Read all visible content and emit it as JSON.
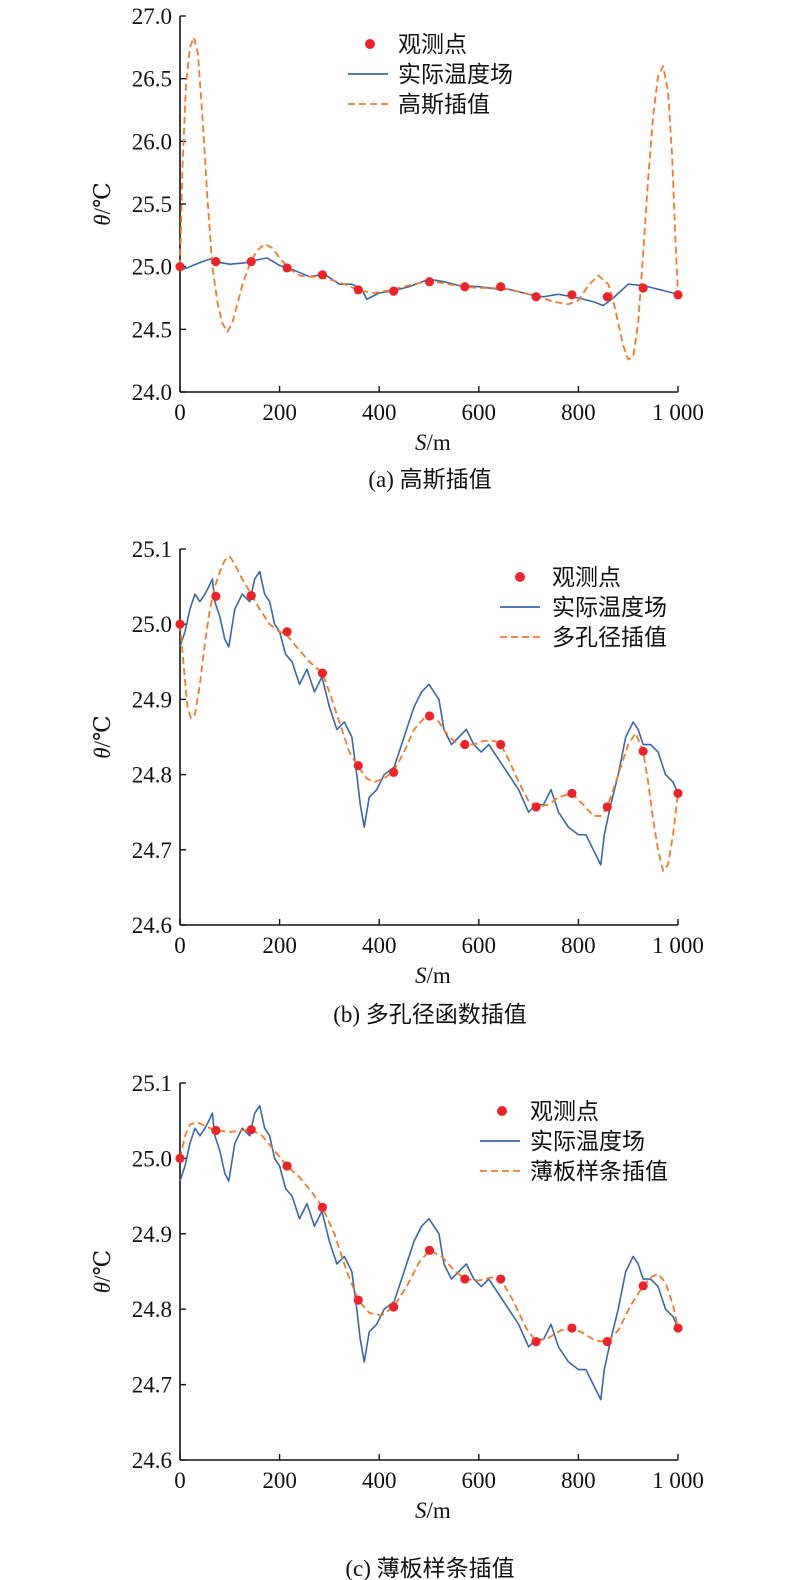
{
  "colors": {
    "observed": "#e8252a",
    "actual": "#3a66a8",
    "interp": "#ee7b2e",
    "axis": "#111111"
  },
  "chart_data": [
    {
      "id": "a",
      "type": "line",
      "caption": "(a) 高斯插值",
      "xlabel": "S/m",
      "ylabel": "θ/℃",
      "xlim": [
        0,
        1000
      ],
      "ylim": [
        24.0,
        27.0
      ],
      "xticks": [
        0,
        200,
        400,
        600,
        800,
        1000
      ],
      "xtick_labels": [
        "0",
        "200",
        "400",
        "600",
        "800",
        "1 000"
      ],
      "yticks": [
        24.0,
        24.5,
        25.0,
        25.5,
        26.0,
        26.5,
        27.0
      ],
      "ytick_labels": [
        "24.0",
        "24.5",
        "25.0",
        "25.5",
        "26.0",
        "26.5",
        "27.0"
      ],
      "legend": [
        "观测点",
        "实际温度场",
        "高斯插值"
      ],
      "legend_position": "top-center",
      "series": [
        {
          "name": "观测点",
          "kind": "points",
          "x": [
            0,
            72,
            143,
            215,
            286,
            358,
            429,
            501,
            572,
            644,
            715,
            787,
            858,
            930,
            1000
          ],
          "y": [
            25.0,
            25.04,
            25.04,
            24.99,
            24.935,
            24.815,
            24.805,
            24.88,
            24.84,
            24.84,
            24.76,
            24.775,
            24.76,
            24.83,
            24.775
          ]
        },
        {
          "name": "实际温度场",
          "kind": "line",
          "x": [
            0,
            20,
            45,
            60,
            70,
            100,
            130,
            150,
            175,
            200,
            230,
            260,
            290,
            320,
            345,
            365,
            375,
            400,
            430,
            460,
            500,
            530,
            560,
            600,
            640,
            660,
            700,
            730,
            760,
            800,
            830,
            850,
            870,
            900,
            930,
            960,
            1000
          ],
          "y": [
            24.97,
            25.0,
            25.04,
            25.06,
            25.04,
            25.02,
            25.03,
            25.05,
            25.07,
            25.01,
            24.97,
            24.92,
            24.94,
            24.86,
            24.86,
            24.82,
            24.74,
            24.79,
            24.81,
            24.84,
            24.9,
            24.88,
            24.85,
            24.84,
            24.82,
            24.82,
            24.78,
            24.76,
            24.78,
            24.75,
            24.72,
            24.69,
            24.75,
            24.86,
            24.85,
            24.82,
            24.78
          ]
        },
        {
          "name": "高斯插值",
          "kind": "dashed",
          "x": [
            0,
            5,
            12,
            20,
            28,
            36,
            45,
            55,
            65,
            75,
            85,
            95,
            105,
            115,
            125,
            140,
            155,
            170,
            185,
            200,
            220,
            240,
            260,
            280,
            300,
            330,
            360,
            390,
            420,
            450,
            480,
            510,
            540,
            570,
            600,
            630,
            660,
            690,
            720,
            750,
            780,
            800,
            820,
            840,
            860,
            870,
            880,
            890,
            900,
            910,
            920,
            930,
            940,
            950,
            960,
            970,
            980,
            988,
            995,
            1000
          ],
          "y": [
            25.0,
            25.8,
            26.45,
            26.75,
            26.83,
            26.7,
            26.2,
            25.55,
            25.0,
            24.72,
            24.55,
            24.48,
            24.55,
            24.7,
            24.85,
            25.02,
            25.13,
            25.18,
            25.15,
            25.07,
            24.98,
            24.93,
            24.92,
            24.92,
            24.9,
            24.86,
            24.81,
            24.79,
            24.81,
            24.84,
            24.87,
            24.88,
            24.86,
            24.84,
            24.83,
            24.83,
            24.82,
            24.79,
            24.76,
            24.72,
            24.7,
            24.73,
            24.85,
            24.93,
            24.86,
            24.73,
            24.55,
            24.37,
            24.26,
            24.28,
            24.55,
            25.1,
            25.7,
            26.2,
            26.52,
            26.6,
            26.4,
            25.9,
            25.2,
            24.78
          ]
        }
      ]
    },
    {
      "id": "b",
      "type": "line",
      "caption": "(b) 多孔径函数插值",
      "xlabel": "S/m",
      "ylabel": "θ/℃",
      "xlim": [
        0,
        1000
      ],
      "ylim": [
        24.6,
        25.1
      ],
      "xticks": [
        0,
        200,
        400,
        600,
        800,
        1000
      ],
      "xtick_labels": [
        "0",
        "200",
        "400",
        "600",
        "800",
        "1 000"
      ],
      "yticks": [
        24.6,
        24.7,
        24.8,
        24.9,
        25.0,
        25.1
      ],
      "ytick_labels": [
        "24.6",
        "24.7",
        "24.8",
        "24.9",
        "25.0",
        "25.1"
      ],
      "legend": [
        "观测点",
        "实际温度场",
        "多孔径插值"
      ],
      "legend_position": "top-right",
      "series": [
        {
          "name": "观测点",
          "kind": "points",
          "x": [
            0,
            72,
            143,
            215,
            286,
            358,
            429,
            501,
            572,
            644,
            715,
            787,
            858,
            930,
            1000
          ],
          "y": [
            25.0,
            25.037,
            25.038,
            24.99,
            24.935,
            24.812,
            24.803,
            24.878,
            24.84,
            24.84,
            24.757,
            24.775,
            24.757,
            24.831,
            24.775
          ]
        },
        {
          "name": "实际温度场",
          "kind": "line",
          "x": [
            0,
            10,
            20,
            30,
            40,
            50,
            58,
            65,
            70,
            80,
            90,
            98,
            110,
            125,
            140,
            150,
            160,
            170,
            180,
            190,
            200,
            212,
            225,
            240,
            255,
            270,
            285,
            300,
            315,
            330,
            345,
            355,
            362,
            370,
            380,
            395,
            410,
            430,
            450,
            470,
            485,
            500,
            510,
            520,
            530,
            545,
            560,
            575,
            590,
            605,
            620,
            640,
            660,
            680,
            700,
            715,
            730,
            745,
            760,
            780,
            800,
            815,
            830,
            845,
            852,
            865,
            880,
            895,
            910,
            920,
            930,
            945,
            960,
            975,
            990,
            1000
          ],
          "y": [
            24.97,
            24.99,
            25.02,
            25.04,
            25.03,
            25.04,
            25.05,
            25.06,
            25.03,
            25.01,
            24.98,
            24.97,
            25.02,
            25.04,
            25.03,
            25.06,
            25.07,
            25.04,
            25.03,
            25.0,
            24.99,
            24.96,
            24.95,
            24.92,
            24.94,
            24.91,
            24.93,
            24.89,
            24.86,
            24.87,
            24.85,
            24.8,
            24.76,
            24.73,
            24.77,
            24.78,
            24.8,
            24.81,
            24.85,
            24.89,
            24.91,
            24.92,
            24.91,
            24.9,
            24.86,
            24.84,
            24.85,
            24.86,
            24.84,
            24.83,
            24.84,
            24.82,
            24.8,
            24.78,
            24.75,
            24.76,
            24.76,
            24.78,
            24.75,
            24.73,
            24.72,
            24.72,
            24.7,
            24.68,
            24.72,
            24.76,
            24.8,
            24.85,
            24.87,
            24.86,
            24.84,
            24.84,
            24.83,
            24.8,
            24.79,
            24.775
          ]
        },
        {
          "name": "多孔径插值",
          "kind": "dashed",
          "x": [
            0,
            8,
            15,
            22,
            30,
            40,
            50,
            60,
            70,
            80,
            90,
            100,
            110,
            125,
            143,
            160,
            180,
            200,
            215,
            240,
            260,
            286,
            300,
            320,
            340,
            358,
            375,
            390,
            410,
            429,
            450,
            470,
            490,
            501,
            520,
            540,
            560,
            572,
            590,
            610,
            630,
            644,
            660,
            680,
            700,
            715,
            740,
            760,
            787,
            810,
            830,
            845,
            858,
            870,
            885,
            900,
            915,
            930,
            940,
            950,
            960,
            970,
            980,
            990,
            1000
          ],
          "y": [
            25.0,
            24.94,
            24.89,
            24.875,
            24.88,
            24.92,
            24.975,
            25.02,
            25.05,
            25.07,
            25.085,
            25.09,
            25.08,
            25.06,
            25.04,
            25.02,
            25.0,
            24.99,
            24.985,
            24.965,
            24.95,
            24.935,
            24.91,
            24.87,
            24.83,
            24.81,
            24.795,
            24.79,
            24.795,
            24.805,
            24.83,
            24.86,
            24.875,
            24.878,
            24.87,
            24.85,
            24.84,
            24.84,
            24.84,
            24.845,
            24.845,
            24.84,
            24.82,
            24.79,
            24.765,
            24.757,
            24.76,
            24.77,
            24.775,
            24.76,
            24.745,
            24.745,
            24.757,
            24.78,
            24.81,
            24.84,
            24.855,
            24.831,
            24.79,
            24.74,
            24.7,
            24.672,
            24.68,
            24.72,
            24.775
          ]
        }
      ]
    },
    {
      "id": "c",
      "type": "line",
      "caption": "(c) 薄板样条插值",
      "xlabel": "S/m",
      "ylabel": "θ/℃",
      "xlim": [
        0,
        1000
      ],
      "ylim": [
        24.6,
        25.1
      ],
      "xticks": [
        0,
        200,
        400,
        600,
        800,
        1000
      ],
      "xtick_labels": [
        "0",
        "200",
        "400",
        "600",
        "800",
        "1 000"
      ],
      "yticks": [
        24.6,
        24.7,
        24.8,
        24.9,
        25.0,
        25.1
      ],
      "ytick_labels": [
        "24.6",
        "24.7",
        "24.8",
        "24.9",
        "25.0",
        "25.1"
      ],
      "legend": [
        "观测点",
        "实际温度场",
        "薄板样条插值"
      ],
      "legend_position": "top-right",
      "series": [
        {
          "name": "观测点",
          "kind": "points",
          "x": [
            0,
            72,
            143,
            215,
            286,
            358,
            429,
            501,
            572,
            644,
            715,
            787,
            858,
            930,
            1000
          ],
          "y": [
            25.0,
            25.037,
            25.038,
            24.99,
            24.935,
            24.812,
            24.803,
            24.878,
            24.84,
            24.84,
            24.757,
            24.775,
            24.757,
            24.831,
            24.775
          ]
        },
        {
          "name": "实际温度场",
          "kind": "line",
          "x": [
            0,
            10,
            20,
            30,
            40,
            50,
            58,
            65,
            70,
            80,
            90,
            98,
            110,
            125,
            140,
            150,
            160,
            170,
            180,
            190,
            200,
            212,
            225,
            240,
            255,
            270,
            285,
            300,
            315,
            330,
            345,
            355,
            362,
            370,
            380,
            395,
            410,
            430,
            450,
            470,
            485,
            500,
            510,
            520,
            530,
            545,
            560,
            575,
            590,
            605,
            620,
            640,
            660,
            680,
            700,
            715,
            730,
            745,
            760,
            780,
            800,
            815,
            830,
            845,
            852,
            865,
            880,
            895,
            910,
            920,
            930,
            945,
            960,
            975,
            990,
            1000
          ],
          "y": [
            24.97,
            24.99,
            25.02,
            25.04,
            25.03,
            25.04,
            25.05,
            25.06,
            25.03,
            25.01,
            24.98,
            24.97,
            25.02,
            25.04,
            25.03,
            25.06,
            25.07,
            25.04,
            25.03,
            25.0,
            24.99,
            24.96,
            24.95,
            24.92,
            24.94,
            24.91,
            24.93,
            24.89,
            24.86,
            24.87,
            24.85,
            24.8,
            24.76,
            24.73,
            24.77,
            24.78,
            24.8,
            24.81,
            24.85,
            24.89,
            24.91,
            24.92,
            24.91,
            24.9,
            24.86,
            24.84,
            24.85,
            24.86,
            24.84,
            24.83,
            24.84,
            24.82,
            24.8,
            24.78,
            24.75,
            24.76,
            24.76,
            24.78,
            24.75,
            24.73,
            24.72,
            24.72,
            24.7,
            24.68,
            24.72,
            24.76,
            24.8,
            24.85,
            24.87,
            24.86,
            24.84,
            24.84,
            24.83,
            24.8,
            24.79,
            24.775
          ]
        },
        {
          "name": "薄板样条插值",
          "kind": "dashed",
          "x": [
            0,
            10,
            20,
            35,
            50,
            72,
            100,
            125,
            143,
            165,
            190,
            215,
            240,
            265,
            286,
            310,
            335,
            358,
            380,
            405,
            429,
            455,
            480,
            501,
            525,
            550,
            572,
            600,
            625,
            644,
            670,
            695,
            715,
            740,
            765,
            787,
            810,
            835,
            858,
            880,
            905,
            930,
            945,
            960,
            975,
            990,
            1000
          ],
          "y": [
            25.0,
            25.03,
            25.045,
            25.048,
            25.043,
            25.037,
            25.035,
            25.037,
            25.038,
            25.03,
            25.01,
            24.99,
            24.975,
            24.955,
            24.935,
            24.9,
            24.85,
            24.812,
            24.795,
            24.792,
            24.803,
            24.83,
            24.862,
            24.878,
            24.87,
            24.852,
            24.84,
            24.838,
            24.842,
            24.84,
            24.81,
            24.775,
            24.757,
            24.762,
            24.772,
            24.775,
            24.768,
            24.758,
            24.757,
            24.772,
            24.805,
            24.831,
            24.842,
            24.847,
            24.835,
            24.805,
            24.775
          ]
        }
      ]
    }
  ]
}
